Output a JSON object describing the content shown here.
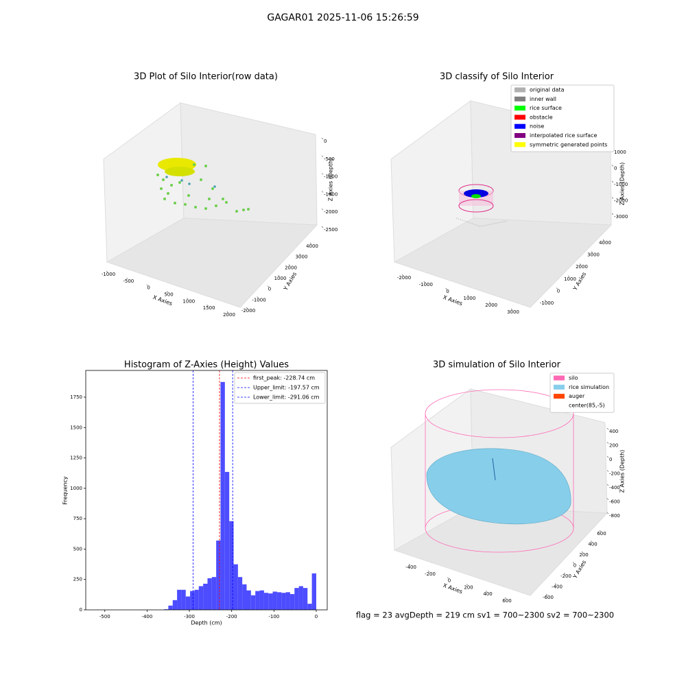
{
  "title": "GAGAR01 2025-11-06 15:26:59",
  "chart_data": [
    {
      "type": "scatter3d",
      "title": "3D Plot of Silo Interior(row data)",
      "xlabel": "X Axies",
      "ylabel": "Y Axies",
      "zlabel": "Z Axies (Depth)",
      "xticks": [
        -1000,
        -500,
        0,
        500,
        1000,
        1500,
        2000
      ],
      "yticks": [
        -2000,
        -1000,
        0,
        1000,
        2000,
        3000,
        4000
      ],
      "zticks": [
        0,
        -500,
        -1000,
        -1500,
        -2000,
        -2500
      ]
    },
    {
      "type": "scatter3d",
      "title": "3D classify of Silo Interior",
      "xlabel": "X Axies",
      "ylabel": "Y Axies",
      "zlabel": "Z Axies (Depth)",
      "xticks": [
        -2000,
        -1000,
        0,
        1000,
        2000,
        3000
      ],
      "yticks": [
        -1000,
        0,
        1000,
        2000,
        3000,
        4000
      ],
      "zticks": [
        1000,
        0,
        -1000,
        -2000,
        -3000
      ],
      "legend": [
        {
          "name": "original data",
          "color": "#b0b0b0"
        },
        {
          "name": "inner wall",
          "color": "#808080"
        },
        {
          "name": "rice surface",
          "color": "#00ff00"
        },
        {
          "name": "obstacle",
          "color": "#ff0000"
        },
        {
          "name": "noise",
          "color": "#0000ff"
        },
        {
          "name": "interpolated rice surface",
          "color": "#800080"
        },
        {
          "name": "symmetric generated points",
          "color": "#ffff00"
        }
      ]
    },
    {
      "type": "histogram",
      "title": "Histogram of Z-Axies (Height) Values",
      "xlabel": "Depth (cm)",
      "ylabel": "Frequency",
      "color": "#4d4dff",
      "xlim": [
        -545,
        26
      ],
      "ylim": [
        0,
        1970
      ],
      "xticks": [
        -500,
        -400,
        -300,
        -200,
        -100,
        0
      ],
      "yticks": [
        0,
        250,
        500,
        750,
        1000,
        1250,
        1500,
        1750
      ],
      "bins": [
        -360,
        -349.7,
        -339.4,
        -329.1,
        -318.9,
        -308.6,
        -298.3,
        -288.0,
        -277.7,
        -267.4,
        -257.1,
        -246.9,
        -236.6,
        -226.3,
        -216.0,
        -205.7,
        -195.4,
        -185.1,
        -174.9,
        -164.6,
        -154.3,
        -144.0,
        -133.7,
        -123.4,
        -113.1,
        -102.9,
        -92.6,
        -82.3,
        -72.0,
        -61.7,
        -51.4,
        -41.1,
        -30.9,
        -20.6,
        -10.3,
        0
      ],
      "counts": [
        5,
        35,
        80,
        165,
        165,
        110,
        155,
        165,
        195,
        215,
        260,
        270,
        570,
        1875,
        1135,
        730,
        375,
        270,
        210,
        160,
        120,
        155,
        160,
        140,
        135,
        150,
        145,
        140,
        145,
        130,
        180,
        195,
        180,
        50,
        300
      ],
      "lines": [
        {
          "name": "first_peak: -228.74 cm",
          "value": -228.74,
          "color": "#ff0000"
        },
        {
          "name": "Upper_limit: -197.57 cm",
          "value": -197.57,
          "color": "#0000ff"
        },
        {
          "name": "Lower_limit: -291.06 cm",
          "value": -291.06,
          "color": "#0000ff"
        }
      ]
    },
    {
      "type": "surface3d",
      "title": "3D simulation of Silo Interior",
      "xlabel": "X Axies",
      "ylabel": "Y Axies",
      "zlabel": "Z Axies (Depth)",
      "xticks": [
        -400,
        -200,
        0,
        200,
        400,
        600
      ],
      "yticks": [
        -600,
        -400,
        -200,
        0,
        200,
        400,
        600
      ],
      "zticks": [
        400,
        200,
        0,
        -200,
        -400,
        -600,
        -800
      ],
      "legend": [
        {
          "name": "silo",
          "color": "#ff69b4"
        },
        {
          "name": "rice simulation",
          "color": "#87ceeb"
        },
        {
          "name": "auger",
          "color": "#ff4500"
        },
        {
          "name": "center(85,-5)"
        }
      ],
      "annotation": "flag = 23  avgDepth = 219 cm  sv1 = 700~2300  sv2 = 700~2300"
    }
  ]
}
